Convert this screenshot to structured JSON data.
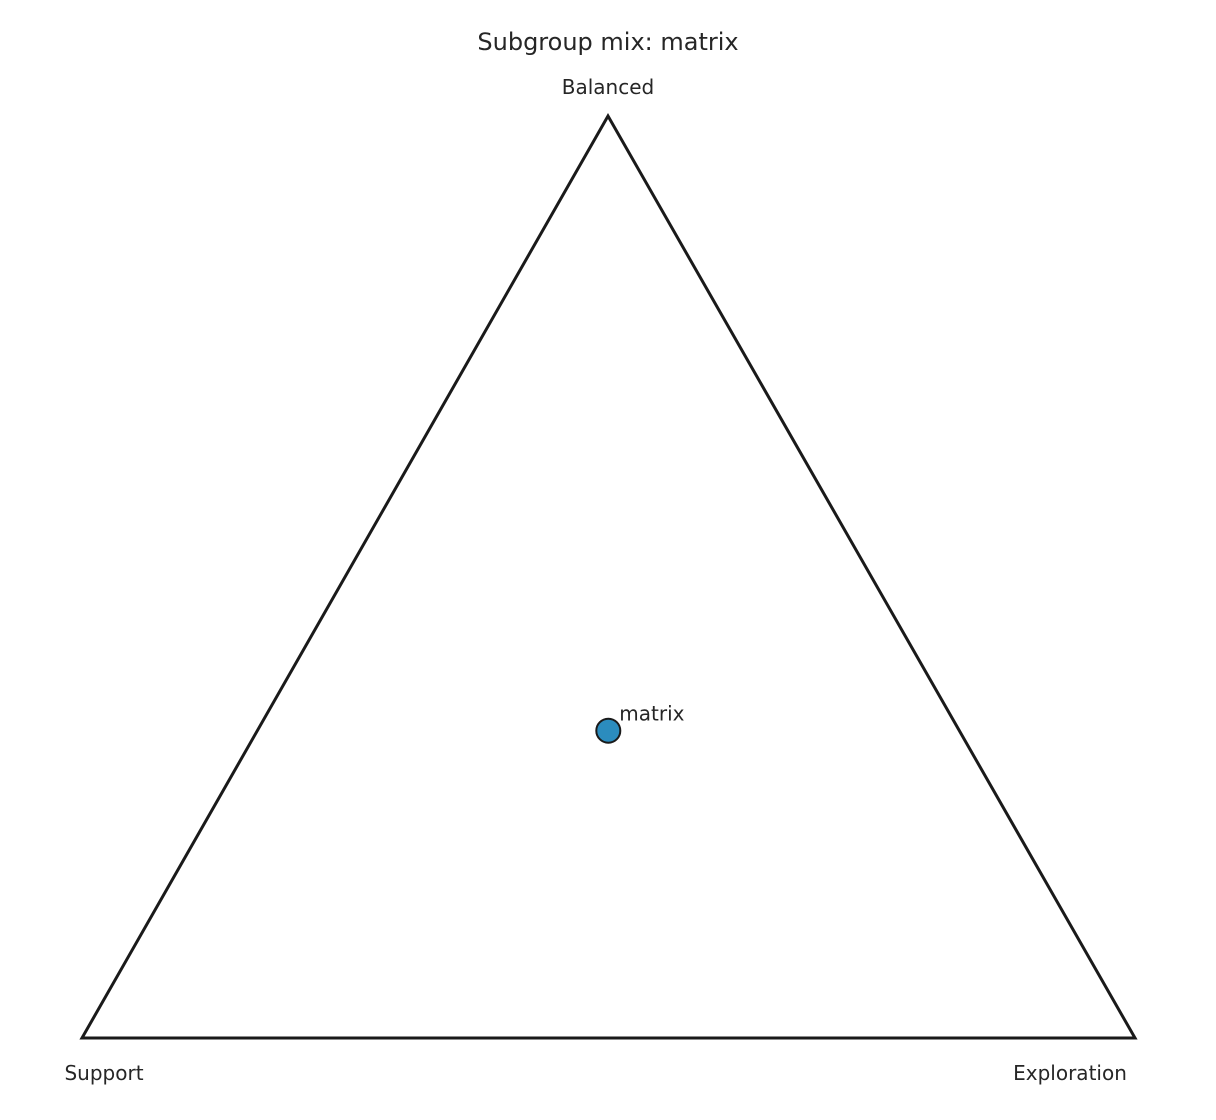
{
  "chart_data": {
    "type": "ternary-scatter",
    "title": "Subgroup mix: matrix",
    "vertices": {
      "top": "Balanced",
      "left": "Support",
      "right": "Exploration"
    },
    "points": [
      {
        "label": "matrix",
        "balanced": 0.333,
        "support": 0.333,
        "exploration": 0.333
      }
    ],
    "colors": {
      "point_fill": "#2b8cbe",
      "point_stroke": "#1a1a1a",
      "triangle_stroke": "#1a1a1a"
    }
  }
}
